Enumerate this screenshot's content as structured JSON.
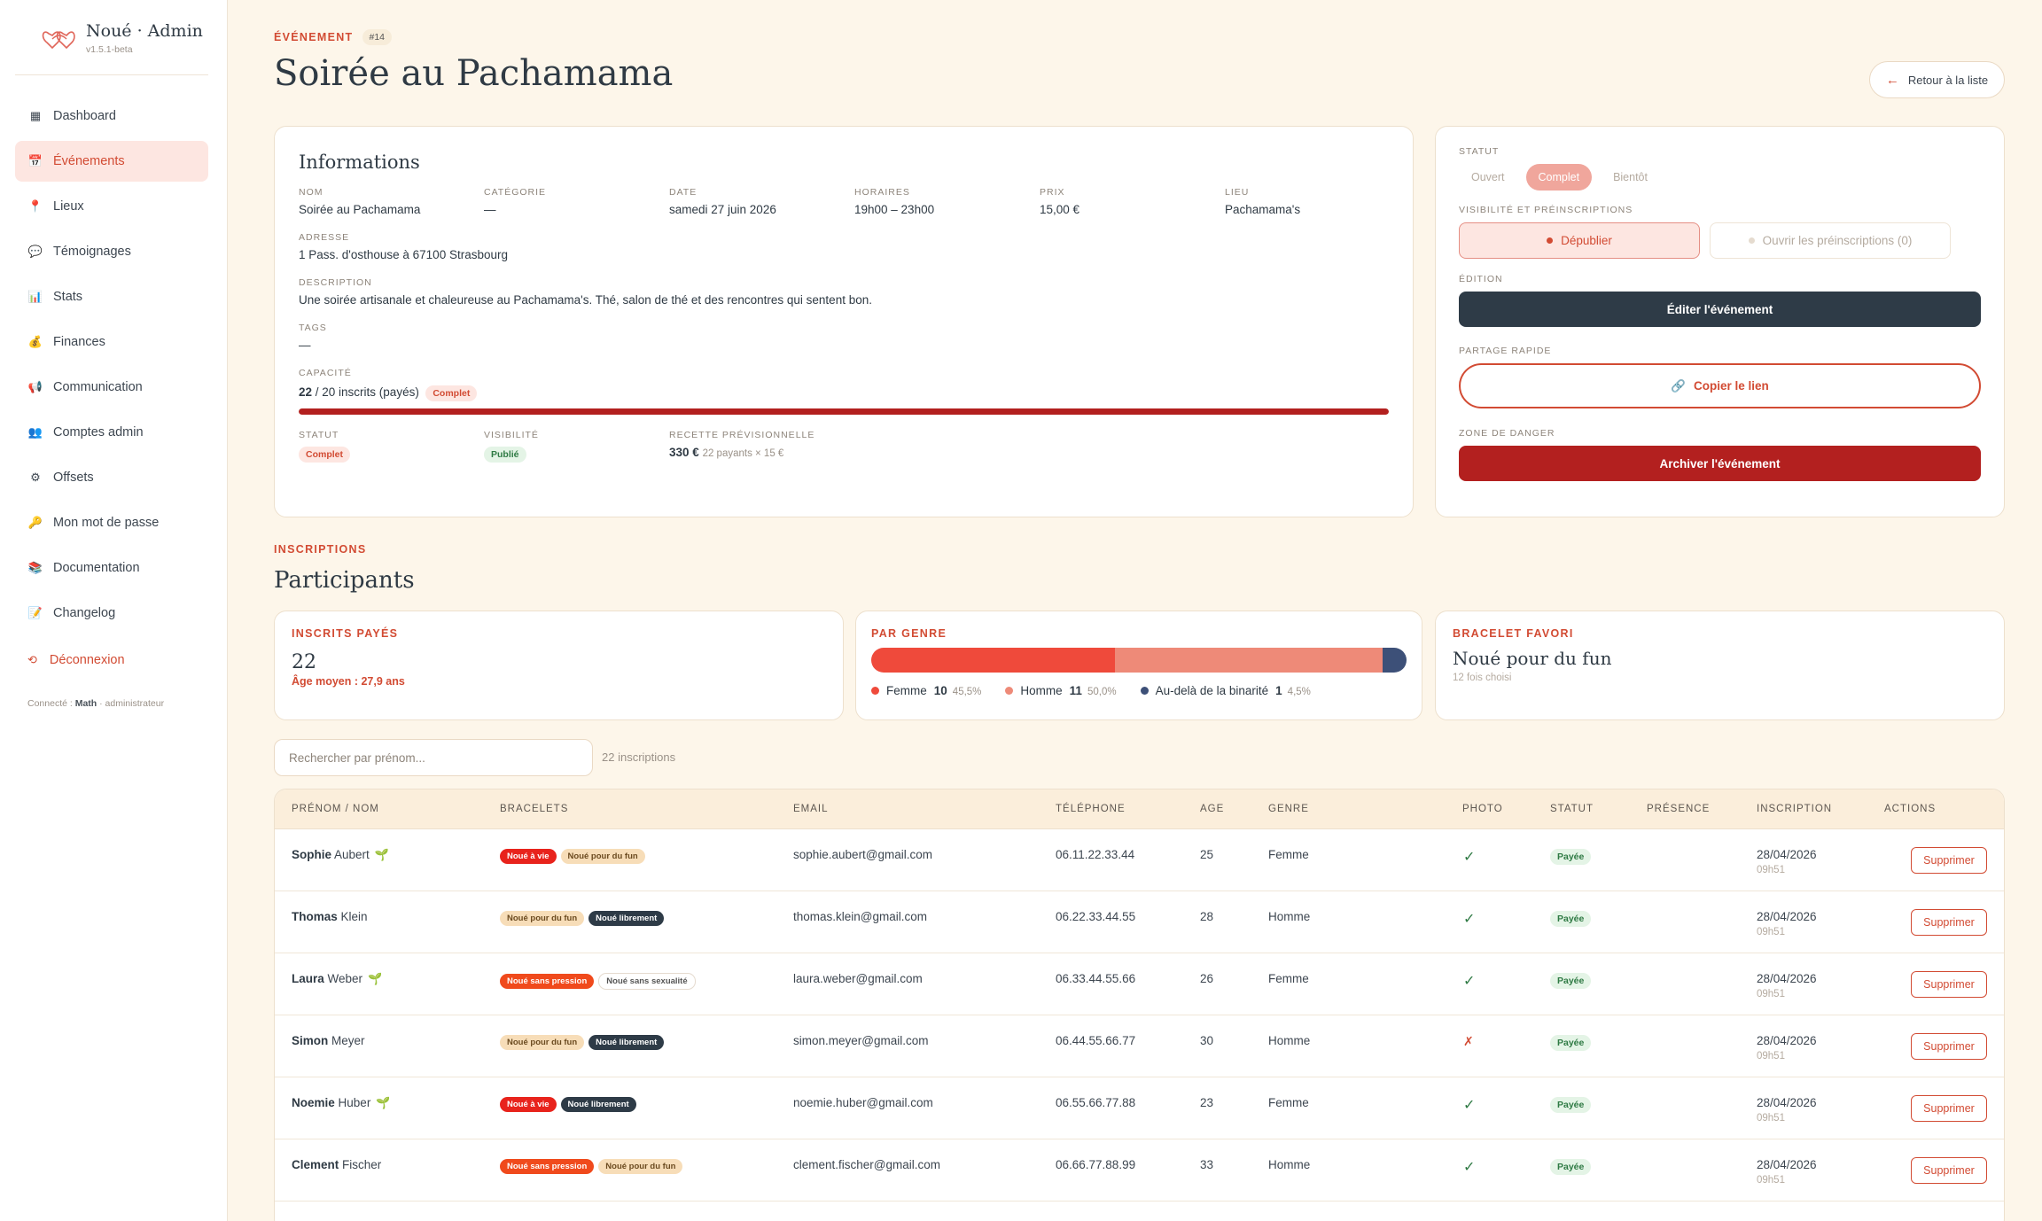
{
  "brand": {
    "title": "Noué · Admin",
    "version": "v1.5.1-beta"
  },
  "nav": [
    {
      "label": "Dashboard",
      "icon": "grid-icon"
    },
    {
      "label": "Événements",
      "icon": "calendar-icon",
      "active": true
    },
    {
      "label": "Lieux",
      "icon": "pin-icon"
    },
    {
      "label": "Témoignages",
      "icon": "chat-icon"
    },
    {
      "label": "Stats",
      "icon": "chart-icon"
    },
    {
      "label": "Finances",
      "icon": "money-bag-icon"
    },
    {
      "label": "Communication",
      "icon": "megaphone-icon"
    },
    {
      "label": "Comptes admin",
      "icon": "users-icon"
    },
    {
      "label": "Offsets",
      "icon": "gear-icon"
    },
    {
      "label": "Mon mot de passe",
      "icon": "key-icon"
    },
    {
      "label": "Documentation",
      "icon": "books-icon"
    },
    {
      "label": "Changelog",
      "icon": "memo-icon"
    }
  ],
  "logout": "Déconnexion",
  "connected": {
    "prefix": "Connecté : ",
    "user": "Math",
    "role": " · administrateur"
  },
  "header": {
    "eyebrow": "ÉVÉNEMENT",
    "id": "#14",
    "title": "Soirée au Pachamama",
    "back": "Retour à la liste"
  },
  "info": {
    "title": "Informations",
    "nom_label": "NOM",
    "nom": "Soirée au Pachamama",
    "categorie_label": "CATÉGORIE",
    "categorie": "—",
    "date_label": "DATE",
    "date": "samedi 27 juin 2026",
    "horaires_label": "HORAIRES",
    "horaires": "19h00 – 23h00",
    "prix_label": "PRIX",
    "prix": "15,00 €",
    "lieu_label": "LIEU",
    "lieu": "Pachamama's",
    "adresse_label": "ADRESSE",
    "adresse": "1 Pass. d'osthouse à 67100 Strasbourg",
    "description_label": "DESCRIPTION",
    "description": "Une soirée artisanale et chaleureuse au Pachamama's. Thé, salon de thé et des rencontres qui sentent bon.",
    "tags_label": "TAGS",
    "tags": "—",
    "capacite_label": "CAPACITÉ",
    "capacite_count": "22",
    "capacite_rest": " / 20 inscrits (payés)",
    "capacite_badge": "Complet",
    "capacite_fill": 1.0,
    "statut_label": "STATUT",
    "statut": "Complet",
    "visibilite_label": "VISIBILITÉ",
    "visibilite": "Publié",
    "recette_label": "RECETTE PRÉVISIONNELLE",
    "recette": "330 €",
    "recette_detail": "22 payants × 15 €"
  },
  "status_card": {
    "statut_label": "STATUT",
    "options": [
      "Ouvert",
      "Complet",
      "Bientôt"
    ],
    "visibilite_label": "VISIBILITÉ ET PRÉINSCRIPTIONS",
    "depublier": "Dépublier",
    "preinscriptions": "Ouvrir les préinscriptions (0)",
    "edition_label": "ÉDITION",
    "editer": "Éditer l'événement",
    "partage_label": "PARTAGE RAPIDE",
    "copier": "Copier le lien",
    "danger_label": "ZONE DE DANGER",
    "archiver": "Archiver l'événement"
  },
  "participants": {
    "eyebrow": "INSCRIPTIONS",
    "title": "Participants"
  },
  "stats": {
    "payes_label": "INSCRITS PAYÉS",
    "payes": "22",
    "age": "Âge moyen : 27,9 ans",
    "genre_label": "PAR GENRE",
    "genre": [
      {
        "name": "Femme",
        "count": "10",
        "pct": "45,5%",
        "share": 45.5,
        "color": "#ef4a3b"
      },
      {
        "name": "Homme",
        "count": "11",
        "pct": "50,0%",
        "share": 50.0,
        "color": "#ee8a78"
      },
      {
        "name": "Au-delà de la binarité",
        "count": "1",
        "pct": "4,5%",
        "share": 4.5,
        "color": "#3d5078"
      }
    ],
    "bracelet_label": "BRACELET FAVORI",
    "bracelet": "Noué pour du fun",
    "bracelet_count": "12 fois choisi"
  },
  "search": {
    "placeholder": "Rechercher par prénom...",
    "count": "22 inscriptions"
  },
  "table": {
    "headers": [
      "PRÉNOM / NOM",
      "BRACELETS",
      "EMAIL",
      "TÉLÉPHONE",
      "AGE",
      "GENRE",
      "PHOTO",
      "STATUT",
      "PRÉSENCE",
      "INSCRIPTION",
      "ACTIONS"
    ],
    "rows": [
      {
        "first": "Sophie",
        "last": "Aubert",
        "sprout": true,
        "tags": [
          "Noué à vie",
          "Noué pour du fun"
        ],
        "email": "sophie.aubert@gmail.com",
        "phone": "06.11.22.33.44",
        "age": "25",
        "genre": "Femme",
        "photo": true,
        "statut": "Payée",
        "date": "28/04/2026",
        "time": "09h51",
        "action": "Supprimer"
      },
      {
        "first": "Thomas",
        "last": "Klein",
        "sprout": false,
        "tags": [
          "Noué pour du fun",
          "Noué librement"
        ],
        "email": "thomas.klein@gmail.com",
        "phone": "06.22.33.44.55",
        "age": "28",
        "genre": "Homme",
        "photo": true,
        "statut": "Payée",
        "date": "28/04/2026",
        "time": "09h51",
        "action": "Supprimer"
      },
      {
        "first": "Laura",
        "last": "Weber",
        "sprout": true,
        "tags": [
          "Noué sans pression",
          "Noué sans sexualité"
        ],
        "email": "laura.weber@gmail.com",
        "phone": "06.33.44.55.66",
        "age": "26",
        "genre": "Femme",
        "photo": true,
        "statut": "Payée",
        "date": "28/04/2026",
        "time": "09h51",
        "action": "Supprimer"
      },
      {
        "first": "Simon",
        "last": "Meyer",
        "sprout": false,
        "tags": [
          "Noué pour du fun",
          "Noué librement"
        ],
        "email": "simon.meyer@gmail.com",
        "phone": "06.44.55.66.77",
        "age": "30",
        "genre": "Homme",
        "photo": false,
        "statut": "Payée",
        "date": "28/04/2026",
        "time": "09h51",
        "action": "Supprimer"
      },
      {
        "first": "Noemie",
        "last": "Huber",
        "sprout": true,
        "tags": [
          "Noué à vie",
          "Noué librement"
        ],
        "email": "noemie.huber@gmail.com",
        "phone": "06.55.66.77.88",
        "age": "23",
        "genre": "Femme",
        "photo": true,
        "statut": "Payée",
        "date": "28/04/2026",
        "time": "09h51",
        "action": "Supprimer"
      },
      {
        "first": "Clement",
        "last": "Fischer",
        "sprout": false,
        "tags": [
          "Noué sans pression",
          "Noué pour du fun"
        ],
        "email": "clement.fischer@gmail.com",
        "phone": "06.66.77.88.99",
        "age": "33",
        "genre": "Homme",
        "photo": true,
        "statut": "Payée",
        "date": "28/04/2026",
        "time": "09h51",
        "action": "Supprimer"
      }
    ]
  },
  "tag_styles": {
    "Noué à vie": {
      "bg": "#e8231c",
      "fg": "#ffffff"
    },
    "Noué pour du fun": {
      "bg": "#f7ddb8",
      "fg": "#6b4a1f"
    },
    "Noué librement": {
      "bg": "#2e3b47",
      "fg": "#ffffff"
    },
    "Noué sans pression": {
      "bg": "#f04a1c",
      "fg": "#ffffff"
    },
    "Noué sans sexualité": {
      "bg": "#ffffff",
      "fg": "#555555",
      "border": "#e5dbcf"
    }
  }
}
